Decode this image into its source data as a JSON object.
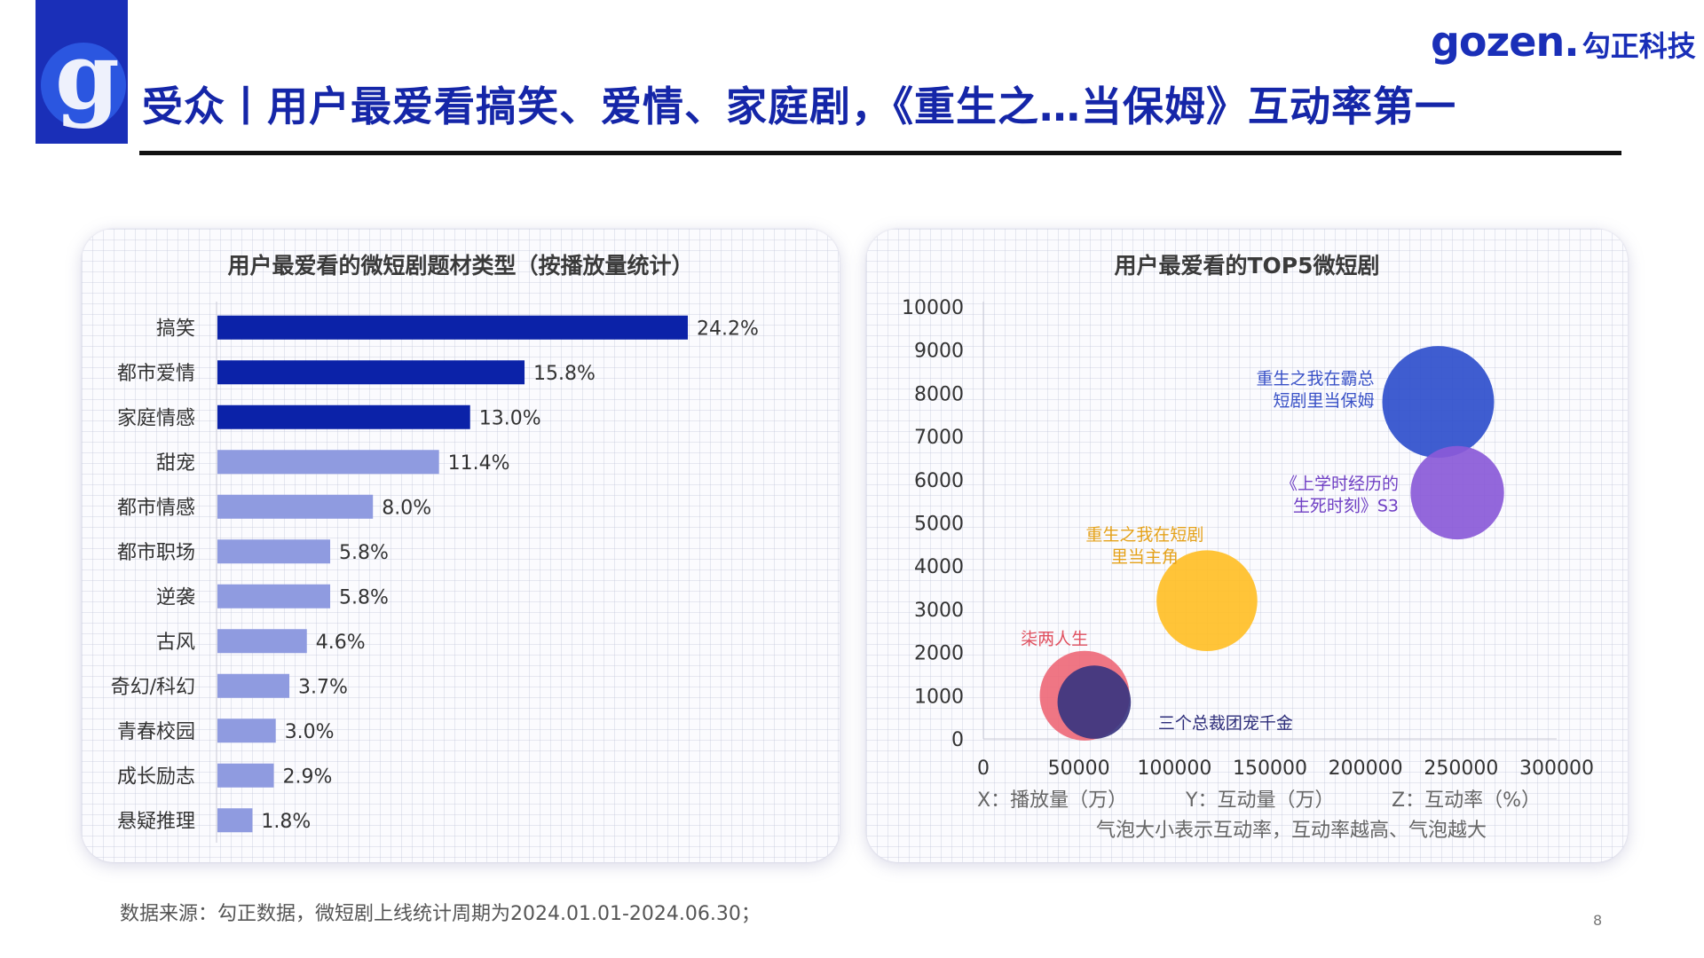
{
  "header": {
    "title": "受众丨用户最爱看搞笑、爱情、家庭剧，《重生之…当保姆》互动率第一",
    "brand_en": "gozen.",
    "brand_cn": "勾正科技",
    "logo_letter": "g"
  },
  "colors": {
    "brand_blue": "#1a2fb8",
    "bar_dark": "#0b22a8",
    "bar_light": "#8f9be0"
  },
  "chart_data": [
    {
      "type": "bar",
      "orientation": "horizontal",
      "title": "用户最爱看的微短剧题材类型（按播放量统计）",
      "categories": [
        "搞笑",
        "都市爱情",
        "家庭情感",
        "甜宠",
        "都市情感",
        "都市职场",
        "逆袭",
        "古风",
        "奇幻/科幻",
        "青春校园",
        "成长励志",
        "悬疑推理"
      ],
      "values": [
        24.2,
        15.8,
        13.0,
        11.4,
        8.0,
        5.8,
        5.8,
        4.6,
        3.7,
        3.0,
        2.9,
        1.8
      ],
      "value_labels": [
        "24.2%",
        "15.8%",
        "13.0%",
        "11.4%",
        "8.0%",
        "5.8%",
        "5.8%",
        "4.6%",
        "3.7%",
        "3.0%",
        "2.9%",
        "1.8%"
      ],
      "highlight_top": 3,
      "xlim": [
        0,
        30
      ],
      "grid": false
    },
    {
      "type": "scatter",
      "subtype": "bubble",
      "title": "用户最爱看的TOP5微短剧",
      "xlim": [
        0,
        300000
      ],
      "ylim": [
        0,
        10000
      ],
      "x_ticks": [
        "0",
        "50000",
        "100000",
        "150000",
        "200000",
        "250000",
        "300000"
      ],
      "y_ticks": [
        "0",
        "1000",
        "2000",
        "3000",
        "4000",
        "5000",
        "6000",
        "7000",
        "8000",
        "9000",
        "10000"
      ],
      "axis_notes": [
        "X：播放量（万）",
        "Y：互动量（万）",
        "Z：互动率（%）"
      ],
      "note": "气泡大小表示互动率，互动率越高、气泡越大",
      "series": [
        {
          "name": "重生之我在霸总短剧里当保姆",
          "label_lines": [
            "重生之我在霸总",
            "短剧里当保姆"
          ],
          "x": 238000,
          "y": 7800,
          "z": 12.2,
          "color": "#2f4fcc",
          "label_color": "#3a52c7"
        },
        {
          "name": "《上学时经历的生死时刻》S3",
          "label_lines": [
            "《上学时经历的",
            "生死时刻》S3"
          ],
          "x": 248000,
          "y": 5700,
          "z": 10.2,
          "color": "#8a5ad8",
          "label_color": "#6f3fc4"
        },
        {
          "name": "重生之我在短剧里当主角",
          "label_lines": [
            "重生之我在短剧",
            "里当主角"
          ],
          "x": 117000,
          "y": 3200,
          "z": 11.0,
          "color": "#ffbf27",
          "label_color": "#e5a21a"
        },
        {
          "name": "柒两人生",
          "label_lines": [
            "柒两人生"
          ],
          "x": 53000,
          "y": 1000,
          "z": 9.8,
          "color": "#ee6a7a",
          "label_color": "#e0505f"
        },
        {
          "name": "三个总裁团宠千金",
          "label_lines": [
            "三个总裁团宠千金"
          ],
          "x": 58000,
          "y": 850,
          "z": 8.0,
          "color": "#3a3580",
          "label_color": "#2d2d7a"
        }
      ]
    }
  ],
  "footer": {
    "source": "数据来源：勾正数据，微短剧上线统计周期为2024.01.01-2024.06.30；",
    "page": "8"
  }
}
